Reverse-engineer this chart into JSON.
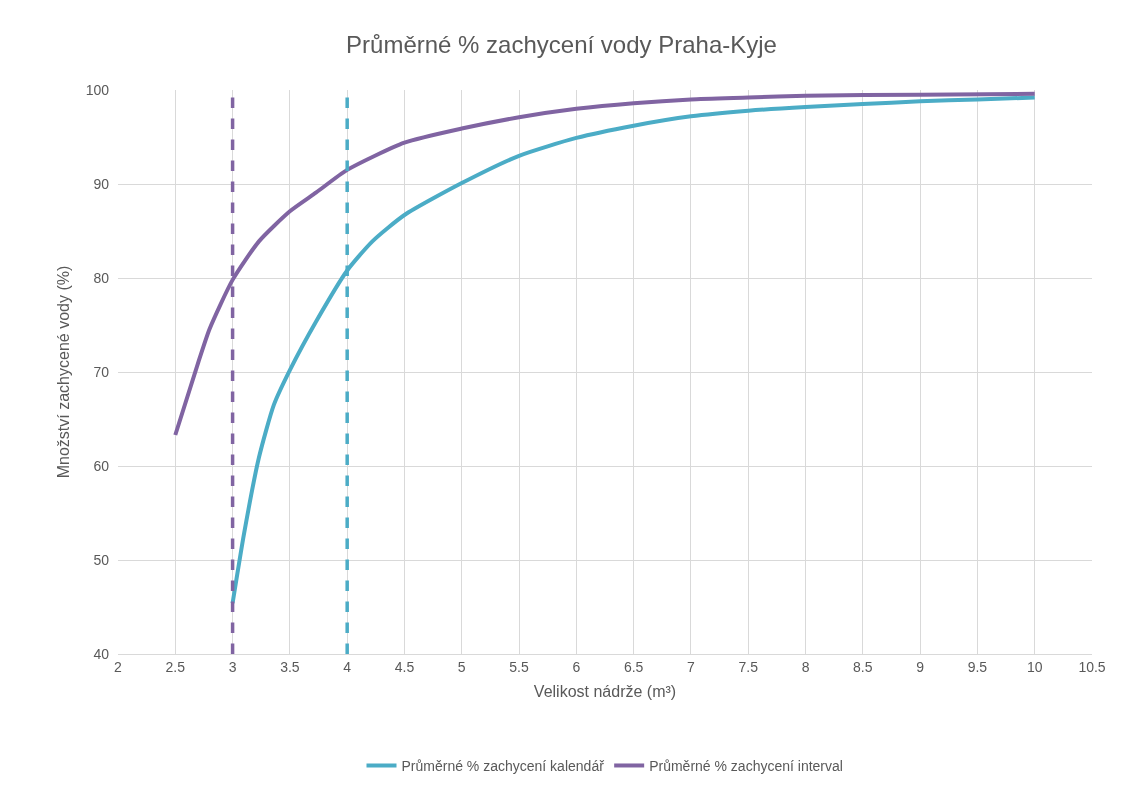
{
  "chart_data": {
    "type": "line",
    "title": "Průměrné % zachycení vody Praha-Kyje",
    "xlabel": "Velikost nádrže (m³)",
    "ylabel": "Množství zachycené vody (%)",
    "xlim": [
      2,
      10.5
    ],
    "xticks": [
      2,
      2.5,
      3,
      3.5,
      4,
      4.5,
      5,
      5.5,
      6,
      6.5,
      7,
      7.5,
      8,
      8.5,
      9,
      9.5,
      10,
      10.5
    ],
    "ylim": [
      40,
      100
    ],
    "yticks": [
      40,
      50,
      60,
      70,
      80,
      90,
      100
    ],
    "grid": true,
    "legend": "bottom",
    "marker": "none",
    "line_style": "solid",
    "series": [
      {
        "name": "Průměrné % zachycení kalendář",
        "color": "#4bacc6",
        "x": [
          3.0,
          3.1,
          3.23,
          3.36,
          3.5,
          3.73,
          4.0,
          4.22,
          4.5,
          5,
          5.5,
          6,
          6.5,
          7,
          7.5,
          8,
          8.5,
          9,
          9.5,
          10
        ],
        "values": [
          45.4,
          52.8,
          60.9,
          66.5,
          70.2,
          75.4,
          80.8,
          83.9,
          86.7,
          90.1,
          93.0,
          94.9,
          96.2,
          97.2,
          97.8,
          98.2,
          98.5,
          98.8,
          99.0,
          99.2
        ]
      },
      {
        "name": "Průměrné % zachycení interval",
        "color": "#8064a2",
        "x": [
          2.5,
          2.7,
          2.8,
          3.0,
          3.23,
          3.5,
          3.73,
          4.0,
          4.5,
          5,
          5.5,
          6,
          6.5,
          7,
          7.5,
          8,
          9,
          10
        ],
        "values": [
          63.3,
          71.0,
          74.6,
          79.8,
          83.9,
          87.1,
          89.1,
          91.5,
          94.4,
          95.9,
          97.1,
          98.0,
          98.6,
          99.0,
          99.2,
          99.4,
          99.5,
          99.6
        ]
      }
    ],
    "ref_lines": [
      {
        "axis": "x",
        "value": 3,
        "color": "#8064a2",
        "line_style": "dashed"
      },
      {
        "axis": "x",
        "value": 4,
        "color": "#4bacc6",
        "line_style": "dashed"
      }
    ]
  }
}
